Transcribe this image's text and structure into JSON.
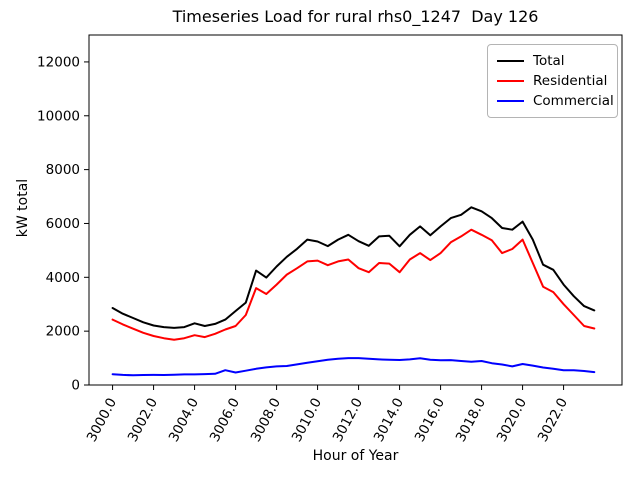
{
  "title": "Timeseries Load for rural rhs0_1247  Day 126",
  "chart_data": {
    "type": "line",
    "title": "Timeseries Load for rural rhs0_1247  Day 126",
    "xlabel": "Hour of Year",
    "ylabel": "kW total",
    "xlim": [
      2998.85,
      3024.85
    ],
    "ylim": [
      0,
      13000
    ],
    "grid": false,
    "legend_position": "upper right",
    "xticks": [
      3000,
      3002,
      3004,
      3006,
      3008,
      3010,
      3012,
      3014,
      3016,
      3018,
      3020,
      3022
    ],
    "xtick_labels": [
      "3000.0",
      "3002.0",
      "3004.0",
      "3006.0",
      "3008.0",
      "3010.0",
      "3012.0",
      "3014.0",
      "3016.0",
      "3018.0",
      "3020.0",
      "3022.0"
    ],
    "yticks": [
      0,
      2000,
      4000,
      6000,
      8000,
      10000,
      12000
    ],
    "ytick_labels": [
      "0",
      "2000",
      "4000",
      "6000",
      "8000",
      "10000",
      "12000"
    ],
    "x": [
      3000,
      3000.5,
      3001,
      3001.5,
      3002,
      3002.5,
      3003,
      3003.5,
      3004,
      3004.5,
      3005,
      3005.5,
      3006,
      3006.5,
      3007,
      3007.5,
      3008,
      3008.5,
      3009,
      3009.5,
      3010,
      3010.5,
      3011,
      3011.5,
      3012,
      3012.5,
      3013,
      3013.5,
      3014,
      3014.5,
      3015,
      3015.5,
      3016,
      3016.5,
      3017,
      3017.5,
      3018,
      3018.5,
      3019,
      3019.5,
      3020,
      3020.5,
      3021,
      3021.5,
      3022,
      3022.5,
      3023,
      3023.5
    ],
    "series": [
      {
        "name": "Total",
        "color": "#000000",
        "values": [
          2860,
          2650,
          2490,
          2330,
          2210,
          2150,
          2120,
          2150,
          2290,
          2190,
          2270,
          2430,
          2750,
          3060,
          4250,
          3990,
          4400,
          4760,
          5060,
          5400,
          5330,
          5160,
          5400,
          5580,
          5340,
          5170,
          5520,
          5540,
          5150,
          5580,
          5890,
          5560,
          5890,
          6200,
          6320,
          6600,
          6450,
          6200,
          5830,
          5770,
          6070,
          5400,
          4470,
          4280,
          3730,
          3300,
          2930,
          2770
        ]
      },
      {
        "name": "Residential",
        "color": "#ff0000",
        "values": [
          2430,
          2250,
          2090,
          1940,
          1820,
          1740,
          1680,
          1740,
          1850,
          1780,
          1900,
          2060,
          2190,
          2600,
          3600,
          3380,
          3730,
          4100,
          4340,
          4590,
          4620,
          4450,
          4590,
          4660,
          4340,
          4190,
          4530,
          4510,
          4190,
          4660,
          4900,
          4640,
          4900,
          5300,
          5520,
          5770,
          5580,
          5380,
          4900,
          5050,
          5400,
          4530,
          3650,
          3450,
          3000,
          2600,
          2190,
          2100
        ]
      },
      {
        "name": "Commercial",
        "color": "#0000ff",
        "values": [
          400,
          375,
          360,
          370,
          375,
          370,
          380,
          395,
          395,
          405,
          415,
          550,
          465,
          530,
          600,
          655,
          690,
          705,
          765,
          825,
          885,
          935,
          975,
          1000,
          1000,
          975,
          950,
          935,
          930,
          950,
          990,
          935,
          920,
          925,
          890,
          865,
          890,
          810,
          760,
          690,
          780,
          720,
          650,
          600,
          550,
          545,
          520,
          480
        ]
      }
    ]
  }
}
